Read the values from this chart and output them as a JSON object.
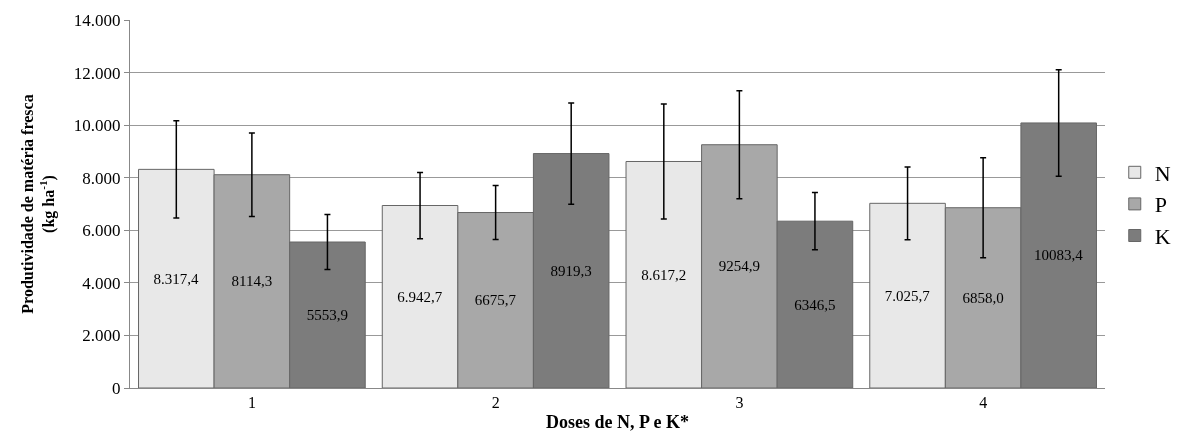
{
  "chart_data": {
    "type": "bar",
    "categories": [
      "1",
      "2",
      "3",
      "4"
    ],
    "xlabel": "Doses de N, P e K*",
    "ylabel": "Produtividade de matéria fresca\n(kg ha$^{-1}$)",
    "series": [
      {
        "name": "N",
        "color": "#e8e8e8",
        "values": [
          8317.4,
          6942.7,
          8617.2,
          7025.7
        ],
        "errors": [
          1850,
          1260,
          2190,
          1385
        ],
        "value_labels": [
          "8.317,4",
          "6.942,7",
          "8.617,2",
          "7.025,7"
        ]
      },
      {
        "name": "P",
        "color": "#a8a8a8",
        "values": [
          8114.3,
          6675.7,
          9254.9,
          6858.0
        ],
        "errors": [
          1590,
          1025,
          2055,
          1900
        ],
        "value_labels": [
          "8114,3",
          "6675,7",
          "9254,9",
          "6858,0"
        ]
      },
      {
        "name": "K",
        "color": "#7c7c7c",
        "values": [
          5553.9,
          8919.3,
          6346.5,
          10083.4
        ],
        "errors": [
          1050,
          1925,
          1090,
          2025
        ],
        "value_labels": [
          "5553,9",
          "8919,3",
          "6346,5",
          "10083,4"
        ]
      }
    ],
    "ylim": [
      0,
      14000
    ],
    "yticks": [
      {
        "value": 0,
        "label": "0"
      },
      {
        "value": 2000,
        "label": "2.000"
      },
      {
        "value": 4000,
        "label": "4.000"
      },
      {
        "value": 6000,
        "label": "6.000"
      },
      {
        "value": 8000,
        "label": "8.000"
      },
      {
        "value": 10000,
        "label": "10.000"
      },
      {
        "value": 12000,
        "label": "12.000"
      },
      {
        "value": 14000,
        "label": "14.000"
      }
    ],
    "grid": "y",
    "legend": "right"
  }
}
